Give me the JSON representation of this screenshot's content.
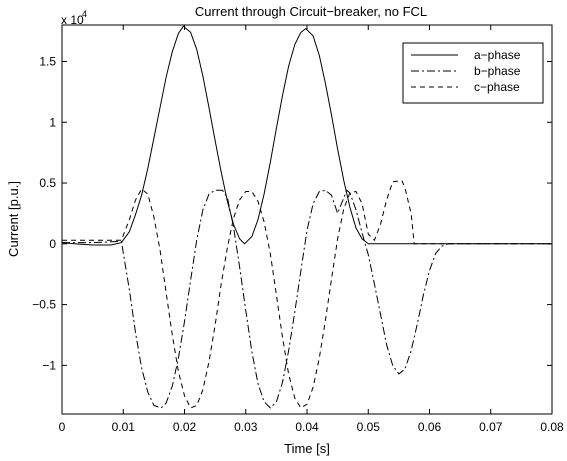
{
  "chart_data": {
    "type": "line",
    "title": "Current through Circuit−breaker, no FCL",
    "xlabel": "Time [s]",
    "ylabel": "Current [p.u.]",
    "y_exponent_label": "x 10",
    "y_exponent_power": "4",
    "xlim": [
      0,
      0.08
    ],
    "ylim": [
      -1.4,
      1.8
    ],
    "y_scale_factor": 10000,
    "x_ticks": [
      0,
      0.01,
      0.02,
      0.03,
      0.04,
      0.05,
      0.06,
      0.07,
      0.08
    ],
    "x_tick_labels": [
      "0",
      "0.01",
      "0.02",
      "0.03",
      "0.04",
      "0.05",
      "0.06",
      "0.07",
      "0.08"
    ],
    "y_ticks": [
      -1,
      -0.5,
      0,
      0.5,
      1,
      1.5
    ],
    "y_tick_labels": [
      "−1",
      "−0.5",
      "0",
      "0.5",
      "1",
      "1.5"
    ],
    "grid": false,
    "legend_position": "top-right",
    "series": [
      {
        "name": "a−phase",
        "dash": "solid",
        "points": [
          [
            0,
            0.01
          ],
          [
            0.002,
            0.0
          ],
          [
            0.005,
            -0.01
          ],
          [
            0.008,
            -0.01
          ],
          [
            0.0097,
            0.01
          ],
          [
            0.011,
            0.1
          ],
          [
            0.012,
            0.24
          ],
          [
            0.013,
            0.4
          ],
          [
            0.014,
            0.62
          ],
          [
            0.015,
            0.87
          ],
          [
            0.016,
            1.12
          ],
          [
            0.017,
            1.37
          ],
          [
            0.018,
            1.58
          ],
          [
            0.019,
            1.73
          ],
          [
            0.0198,
            1.79
          ],
          [
            0.021,
            1.74
          ],
          [
            0.022,
            1.6
          ],
          [
            0.023,
            1.38
          ],
          [
            0.024,
            1.12
          ],
          [
            0.025,
            0.85
          ],
          [
            0.026,
            0.59
          ],
          [
            0.027,
            0.35
          ],
          [
            0.028,
            0.16
          ],
          [
            0.029,
            0.04
          ],
          [
            0.0298,
            0.0
          ],
          [
            0.031,
            0.06
          ],
          [
            0.032,
            0.2
          ],
          [
            0.033,
            0.41
          ],
          [
            0.034,
            0.67
          ],
          [
            0.035,
            0.95
          ],
          [
            0.036,
            1.22
          ],
          [
            0.037,
            1.46
          ],
          [
            0.038,
            1.64
          ],
          [
            0.039,
            1.74
          ],
          [
            0.0398,
            1.77
          ],
          [
            0.041,
            1.71
          ],
          [
            0.042,
            1.55
          ],
          [
            0.043,
            1.32
          ],
          [
            0.044,
            1.06
          ],
          [
            0.045,
            0.78
          ],
          [
            0.046,
            0.52
          ],
          [
            0.047,
            0.3
          ],
          [
            0.048,
            0.13
          ],
          [
            0.049,
            0.04
          ],
          [
            0.05,
            0.0
          ],
          [
            0.055,
            0.0
          ],
          [
            0.06,
            0.0
          ],
          [
            0.065,
            0.0
          ],
          [
            0.07,
            0.0
          ],
          [
            0.075,
            0.0
          ],
          [
            0.08,
            0.0
          ]
        ]
      },
      {
        "name": "b−phase",
        "dash": "dashdot",
        "points": [
          [
            0,
            0.01
          ],
          [
            0.005,
            0.01
          ],
          [
            0.0097,
            0.02
          ],
          [
            0.011,
            -0.38
          ],
          [
            0.012,
            -0.73
          ],
          [
            0.013,
            -1.02
          ],
          [
            0.014,
            -1.22
          ],
          [
            0.015,
            -1.33
          ],
          [
            0.0162,
            -1.35
          ],
          [
            0.017,
            -1.31
          ],
          [
            0.018,
            -1.17
          ],
          [
            0.019,
            -0.94
          ],
          [
            0.02,
            -0.64
          ],
          [
            0.021,
            -0.3
          ],
          [
            0.022,
            0.03
          ],
          [
            0.023,
            0.28
          ],
          [
            0.024,
            0.41
          ],
          [
            0.025,
            0.44
          ],
          [
            0.0262,
            0.44
          ],
          [
            0.027,
            0.38
          ],
          [
            0.028,
            0.14
          ],
          [
            0.029,
            -0.19
          ],
          [
            0.03,
            -0.55
          ],
          [
            0.031,
            -0.89
          ],
          [
            0.032,
            -1.15
          ],
          [
            0.033,
            -1.3
          ],
          [
            0.034,
            -1.35
          ],
          [
            0.035,
            -1.3
          ],
          [
            0.036,
            -1.14
          ],
          [
            0.037,
            -0.88
          ],
          [
            0.038,
            -0.56
          ],
          [
            0.039,
            -0.22
          ],
          [
            0.04,
            0.11
          ],
          [
            0.041,
            0.33
          ],
          [
            0.042,
            0.43
          ],
          [
            0.043,
            0.44
          ],
          [
            0.044,
            0.4
          ],
          [
            0.045,
            0.25
          ],
          [
            0.0465,
            0.44
          ],
          [
            0.047,
            0.42
          ],
          [
            0.048,
            0.28
          ],
          [
            0.049,
            0.09
          ],
          [
            0.05,
            -0.09
          ],
          [
            0.051,
            -0.33
          ],
          [
            0.052,
            -0.58
          ],
          [
            0.053,
            -0.83
          ],
          [
            0.054,
            -1.0
          ],
          [
            0.055,
            -1.07
          ],
          [
            0.056,
            -1.03
          ],
          [
            0.057,
            -0.88
          ],
          [
            0.058,
            -0.66
          ],
          [
            0.059,
            -0.42
          ],
          [
            0.06,
            -0.22
          ],
          [
            0.061,
            -0.08
          ],
          [
            0.062,
            -0.02
          ],
          [
            0.063,
            0.0
          ],
          [
            0.065,
            0.0
          ],
          [
            0.07,
            0.0
          ],
          [
            0.075,
            0.0
          ],
          [
            0.08,
            0.0
          ]
        ]
      },
      {
        "name": "c−phase",
        "dash": "dashed",
        "points": [
          [
            0,
            0.03
          ],
          [
            0.005,
            0.03
          ],
          [
            0.0097,
            0.03
          ],
          [
            0.011,
            0.2
          ],
          [
            0.012,
            0.36
          ],
          [
            0.013,
            0.45
          ],
          [
            0.014,
            0.41
          ],
          [
            0.015,
            0.22
          ],
          [
            0.016,
            -0.05
          ],
          [
            0.017,
            -0.4
          ],
          [
            0.018,
            -0.75
          ],
          [
            0.019,
            -1.05
          ],
          [
            0.02,
            -1.25
          ],
          [
            0.021,
            -1.35
          ],
          [
            0.022,
            -1.33
          ],
          [
            0.023,
            -1.2
          ],
          [
            0.024,
            -0.97
          ],
          [
            0.025,
            -0.67
          ],
          [
            0.026,
            -0.33
          ],
          [
            0.027,
            -0.03
          ],
          [
            0.028,
            0.21
          ],
          [
            0.029,
            0.36
          ],
          [
            0.03,
            0.43
          ],
          [
            0.031,
            0.43
          ],
          [
            0.032,
            0.35
          ],
          [
            0.033,
            0.18
          ],
          [
            0.034,
            -0.08
          ],
          [
            0.035,
            -0.42
          ],
          [
            0.036,
            -0.77
          ],
          [
            0.037,
            -1.07
          ],
          [
            0.038,
            -1.27
          ],
          [
            0.039,
            -1.35
          ],
          [
            0.04,
            -1.32
          ],
          [
            0.041,
            -1.18
          ],
          [
            0.042,
            -0.94
          ],
          [
            0.043,
            -0.63
          ],
          [
            0.044,
            -0.29
          ],
          [
            0.045,
            0.04
          ],
          [
            0.046,
            0.29
          ],
          [
            0.047,
            0.42
          ],
          [
            0.048,
            0.43
          ],
          [
            0.049,
            0.33
          ],
          [
            0.05,
            0.08
          ],
          [
            0.051,
            0.03
          ],
          [
            0.052,
            0.16
          ],
          [
            0.053,
            0.36
          ],
          [
            0.054,
            0.51
          ],
          [
            0.0555,
            0.52
          ],
          [
            0.056,
            0.46
          ],
          [
            0.057,
            0.25
          ],
          [
            0.0575,
            0.0
          ],
          [
            0.06,
            0.0
          ],
          [
            0.065,
            0.0
          ],
          [
            0.07,
            0.0
          ],
          [
            0.075,
            0.0
          ],
          [
            0.08,
            0.0
          ]
        ]
      }
    ]
  }
}
